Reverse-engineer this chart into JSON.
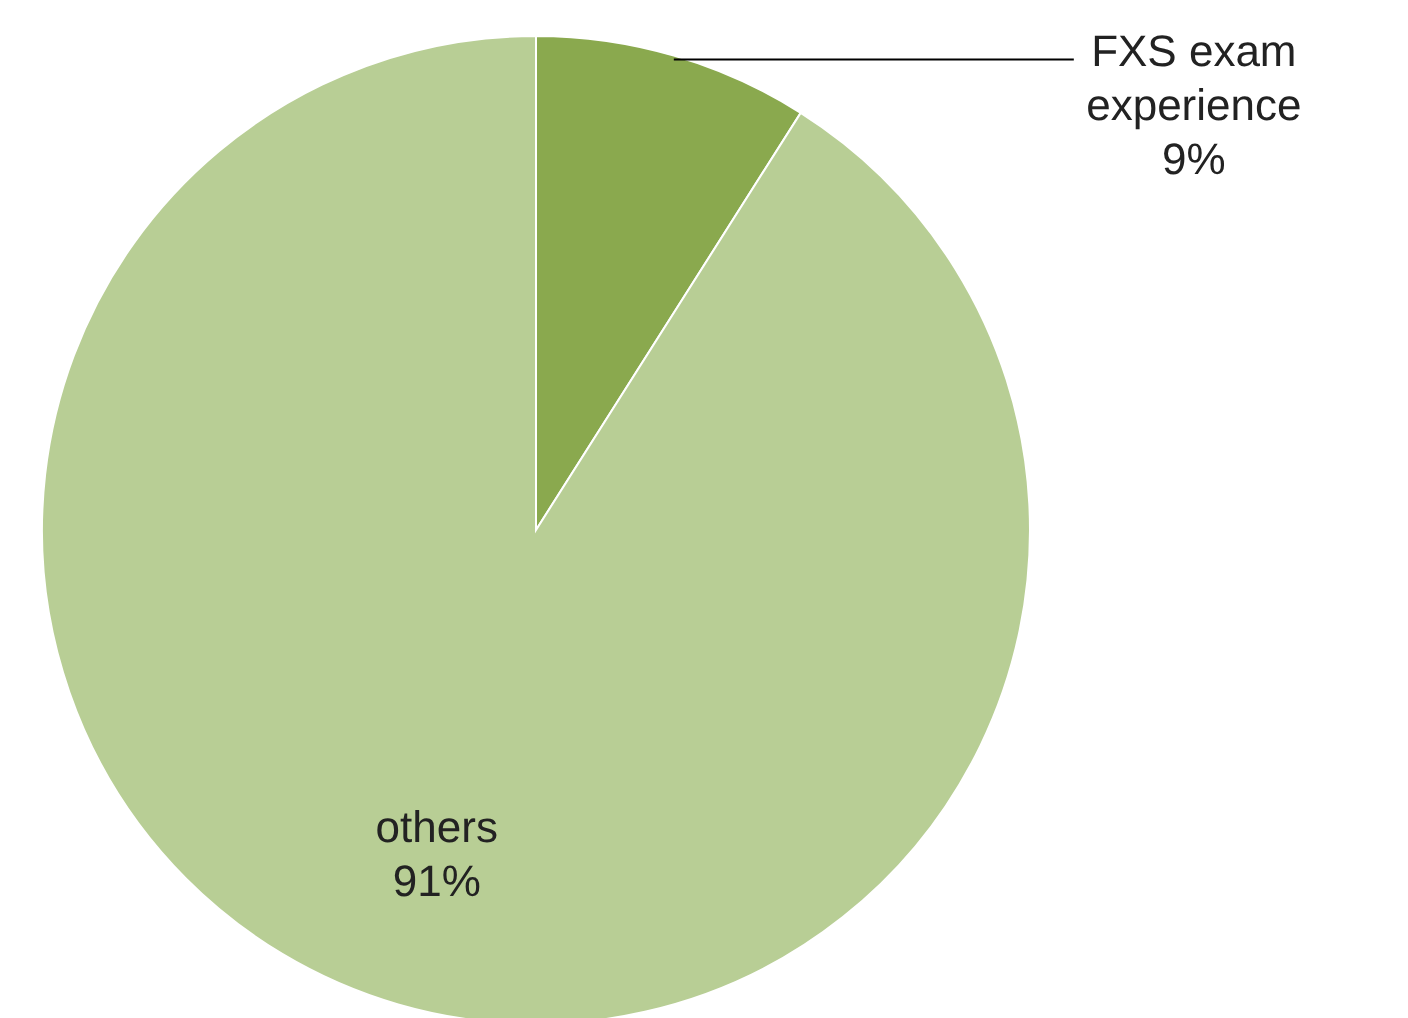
{
  "chart_data": {
    "type": "pie",
    "categories": [
      "FXS exam experience",
      "others"
    ],
    "values": [
      9,
      91
    ],
    "value_labels": [
      "9%",
      "91%"
    ],
    "colors": [
      "#8aa94e",
      "#b8ce95"
    ]
  }
}
